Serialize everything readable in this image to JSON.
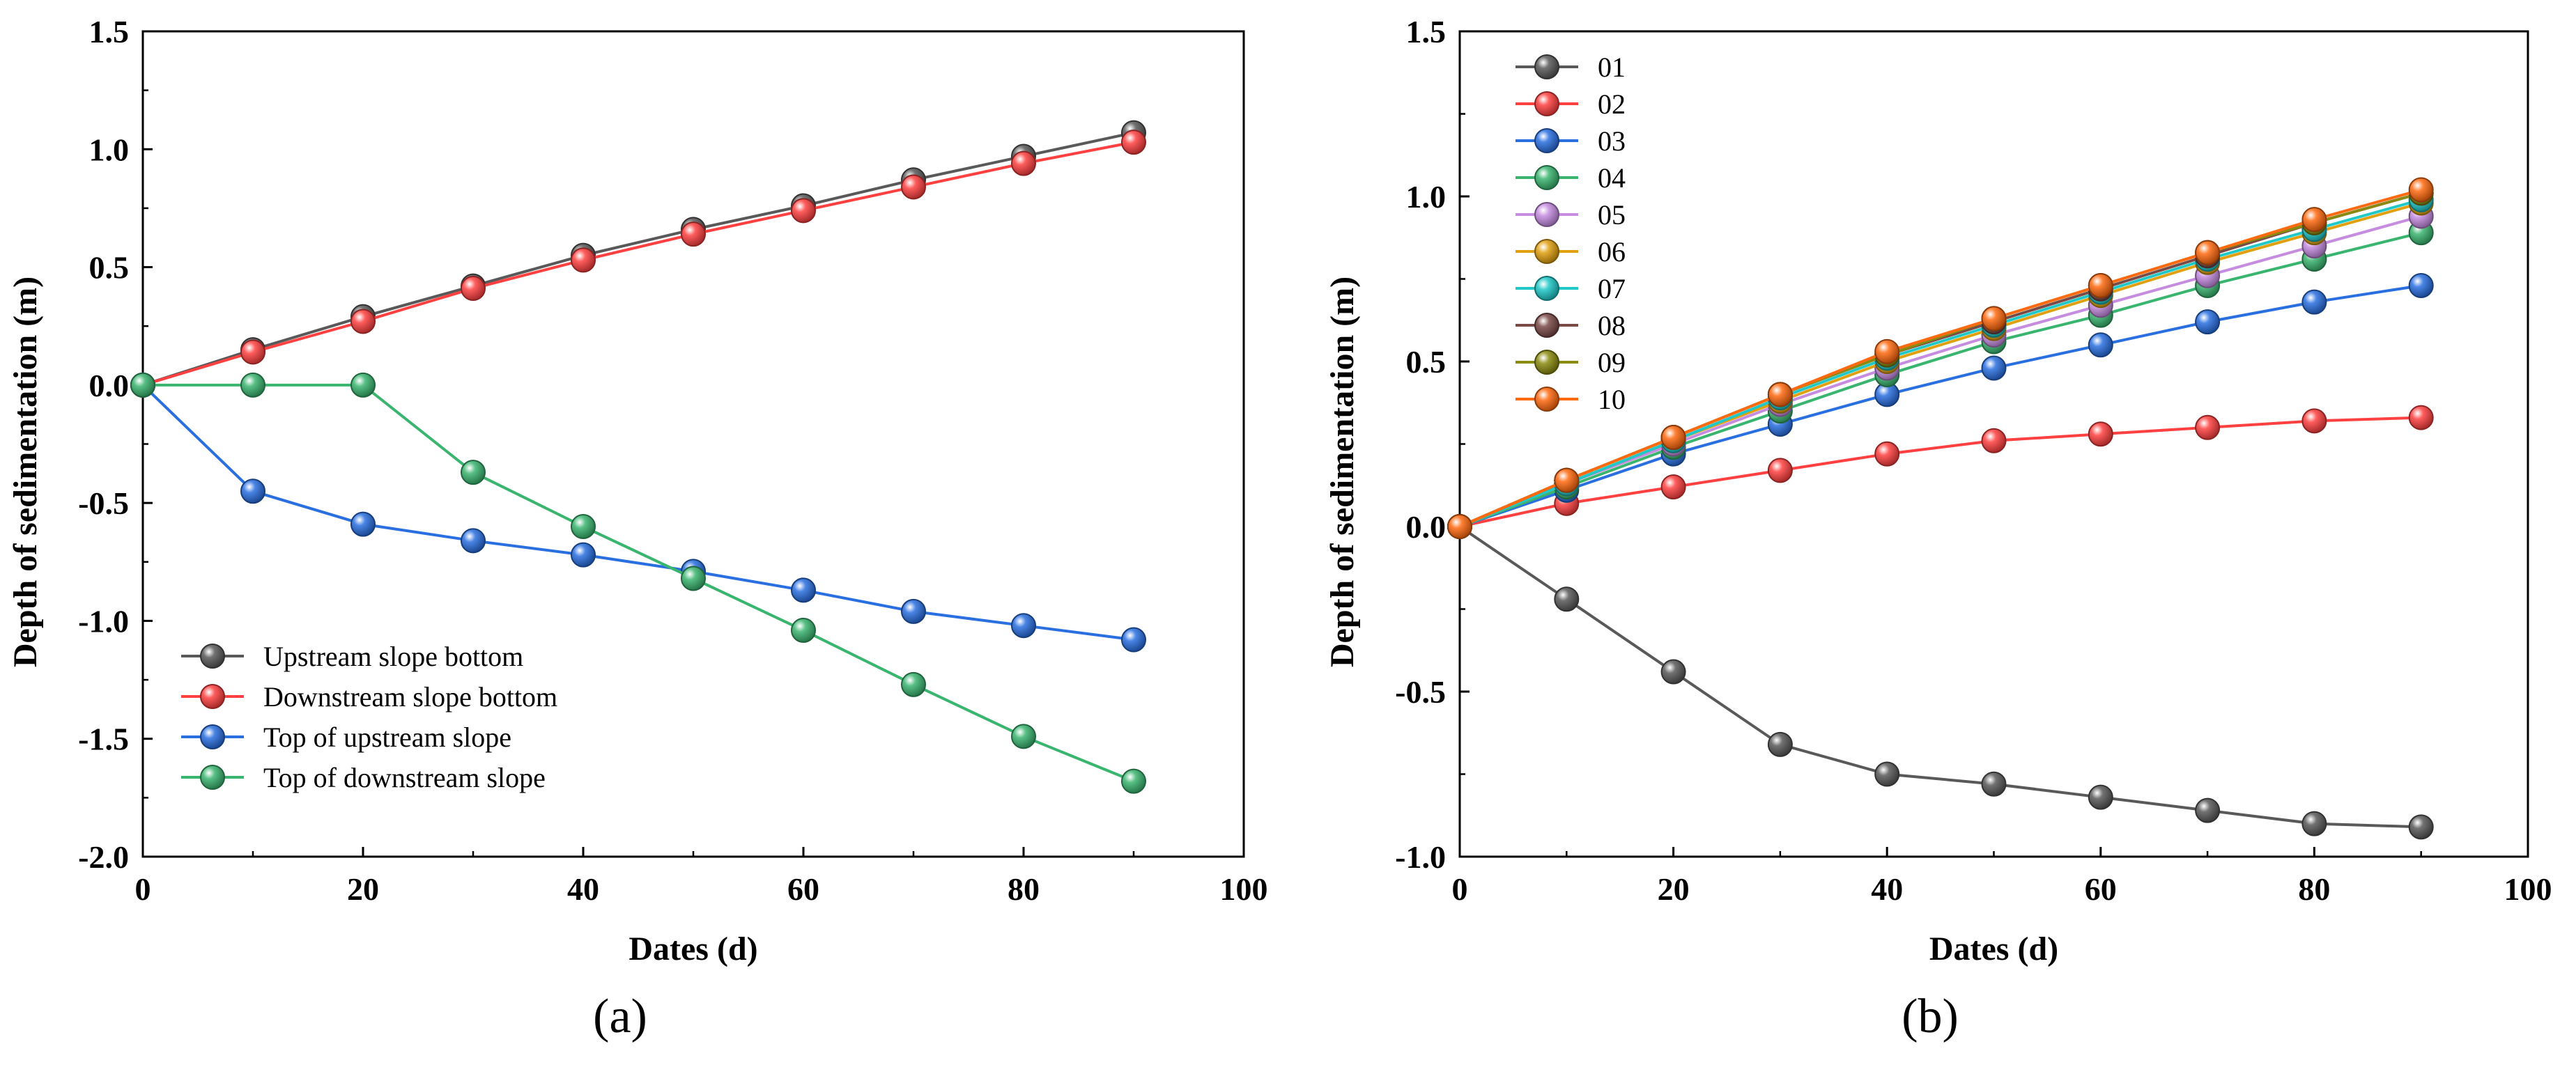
{
  "chart_data": [
    {
      "type": "line",
      "panel_label": "(a)",
      "xlabel": "Dates (d)",
      "ylabel": "Depth of sedimentation (m)",
      "xlim": [
        0,
        100
      ],
      "ylim": [
        -2.0,
        1.5
      ],
      "xticks": [
        0,
        20,
        40,
        60,
        80,
        100
      ],
      "yticks": [
        -2.0,
        -1.5,
        -1.0,
        -0.5,
        0.0,
        0.5,
        1.0,
        1.5
      ],
      "xtick_labels": [
        "0",
        "20",
        "40",
        "60",
        "80",
        "100"
      ],
      "ytick_labels": [
        "-2.0",
        "-1.5",
        "-1.0",
        "-0.5",
        "0.0",
        "0.5",
        "1.0",
        "1.5"
      ],
      "grid": false,
      "legend_position": "bottom-left",
      "x": [
        0,
        10,
        20,
        30,
        40,
        50,
        60,
        70,
        80,
        90
      ],
      "series": [
        {
          "name": "Upstream slope bottom",
          "color": "#595959",
          "values": [
            0,
            0.15,
            0.29,
            0.42,
            0.55,
            0.66,
            0.76,
            0.87,
            0.97,
            1.07
          ]
        },
        {
          "name": "Downstream slope bottom",
          "color": "#ff4040",
          "values": [
            0,
            0.14,
            0.27,
            0.41,
            0.53,
            0.64,
            0.74,
            0.84,
            0.94,
            1.03
          ]
        },
        {
          "name": "Top of upstream slope",
          "color": "#2a6fe0",
          "values": [
            0,
            -0.45,
            -0.59,
            -0.66,
            -0.72,
            -0.79,
            -0.87,
            -0.96,
            -1.02,
            -1.08
          ]
        },
        {
          "name": "Top of downstream slope",
          "color": "#3ab570",
          "values": [
            0,
            0,
            0,
            -0.37,
            -0.6,
            -0.82,
            -1.04,
            -1.27,
            -1.49,
            -1.68
          ]
        }
      ]
    },
    {
      "type": "line",
      "panel_label": "(b)",
      "xlabel": "Dates (d)",
      "ylabel": "Depth of sedimentation (m)",
      "xlim": [
        0,
        100
      ],
      "ylim": [
        -1.0,
        1.5
      ],
      "xticks": [
        0,
        20,
        40,
        60,
        80,
        100
      ],
      "yticks": [
        -1.0,
        -0.5,
        0.0,
        0.5,
        1.0,
        1.5
      ],
      "xtick_labels": [
        "0",
        "20",
        "40",
        "60",
        "80",
        "100"
      ],
      "ytick_labels": [
        "-1.0",
        "-0.5",
        "0.0",
        "0.5",
        "1.0",
        "1.5"
      ],
      "grid": false,
      "legend_position": "top-left",
      "x": [
        0,
        10,
        20,
        30,
        40,
        50,
        60,
        70,
        80,
        90
      ],
      "series": [
        {
          "name": "01",
          "color": "#595959",
          "values": [
            0,
            -0.22,
            -0.44,
            -0.66,
            -0.75,
            -0.78,
            -0.82,
            -0.86,
            -0.9,
            -0.91
          ]
        },
        {
          "name": "02",
          "color": "#ff4040",
          "values": [
            0,
            0.07,
            0.12,
            0.17,
            0.22,
            0.26,
            0.28,
            0.3,
            0.32,
            0.33
          ]
        },
        {
          "name": "03",
          "color": "#2a6fe0",
          "values": [
            0,
            0.11,
            0.22,
            0.31,
            0.4,
            0.48,
            0.55,
            0.62,
            0.68,
            0.73
          ]
        },
        {
          "name": "04",
          "color": "#3ab570",
          "values": [
            0,
            0.12,
            0.24,
            0.35,
            0.46,
            0.56,
            0.64,
            0.73,
            0.81,
            0.89
          ]
        },
        {
          "name": "05",
          "color": "#c58ce0",
          "values": [
            0,
            0.13,
            0.25,
            0.37,
            0.48,
            0.58,
            0.67,
            0.76,
            0.85,
            0.94
          ]
        },
        {
          "name": "06",
          "color": "#e0a010",
          "values": [
            0,
            0.13,
            0.26,
            0.38,
            0.5,
            0.6,
            0.7,
            0.8,
            0.89,
            0.98
          ]
        },
        {
          "name": "07",
          "color": "#20c8c8",
          "values": [
            0,
            0.13,
            0.26,
            0.39,
            0.51,
            0.61,
            0.71,
            0.81,
            0.9,
            0.99
          ]
        },
        {
          "name": "08",
          "color": "#7a4a46",
          "values": [
            0,
            0.14,
            0.27,
            0.4,
            0.52,
            0.62,
            0.72,
            0.82,
            0.92,
            1.01
          ]
        },
        {
          "name": "09",
          "color": "#8a8a10",
          "values": [
            0,
            0.14,
            0.27,
            0.4,
            0.52,
            0.63,
            0.73,
            0.83,
            0.92,
            1.01
          ]
        },
        {
          "name": "10",
          "color": "#ff6a10",
          "values": [
            0,
            0.14,
            0.27,
            0.4,
            0.53,
            0.63,
            0.73,
            0.83,
            0.93,
            1.02
          ]
        }
      ]
    }
  ]
}
